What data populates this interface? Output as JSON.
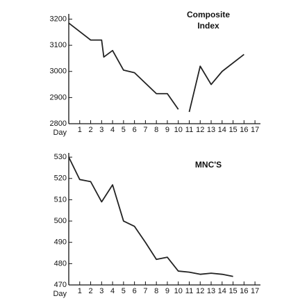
{
  "chart_data": [
    {
      "type": "line",
      "annotation": [
        "Composite",
        "Index"
      ],
      "x_label": "Day",
      "x": [
        0,
        2,
        3,
        3.2,
        4,
        5,
        6,
        8,
        9,
        10,
        10.5,
        11,
        12,
        13,
        14,
        16
      ],
      "series": [
        {
          "color": "#222222",
          "values": [
            3185,
            3120,
            3120,
            3055,
            3080,
            3005,
            2995,
            2915,
            2915,
            2855,
            null,
            2845,
            3020,
            2950,
            3000,
            3065
          ]
        }
      ],
      "xlim": [
        0,
        17.5
      ],
      "xticks": [
        1,
        2,
        3,
        4,
        5,
        6,
        7,
        8,
        9,
        10,
        11,
        12,
        13,
        14,
        15,
        16,
        17
      ],
      "ylim": [
        2800,
        3220
      ],
      "yticks": [
        2800,
        2900,
        3000,
        3100,
        3200
      ]
    },
    {
      "type": "line",
      "annotation": [
        "MNC'S"
      ],
      "x_label": "Day",
      "x": [
        0,
        1,
        2,
        3,
        4,
        5,
        6,
        7,
        8,
        9,
        10,
        11,
        12,
        13,
        14,
        15
      ],
      "series": [
        {
          "color": "#222222",
          "values": [
            530,
            519.5,
            518.5,
            509,
            517,
            500,
            497.5,
            490,
            482,
            483,
            476.5,
            476,
            475,
            475.5,
            475,
            474
          ]
        }
      ],
      "xlim": [
        0,
        17.5
      ],
      "xticks": [
        1,
        2,
        3,
        4,
        5,
        6,
        7,
        8,
        9,
        10,
        11,
        12,
        13,
        14,
        15,
        16,
        17
      ],
      "ylim": [
        470,
        532
      ],
      "yticks": [
        470,
        480,
        490,
        500,
        510,
        520,
        530
      ]
    }
  ]
}
